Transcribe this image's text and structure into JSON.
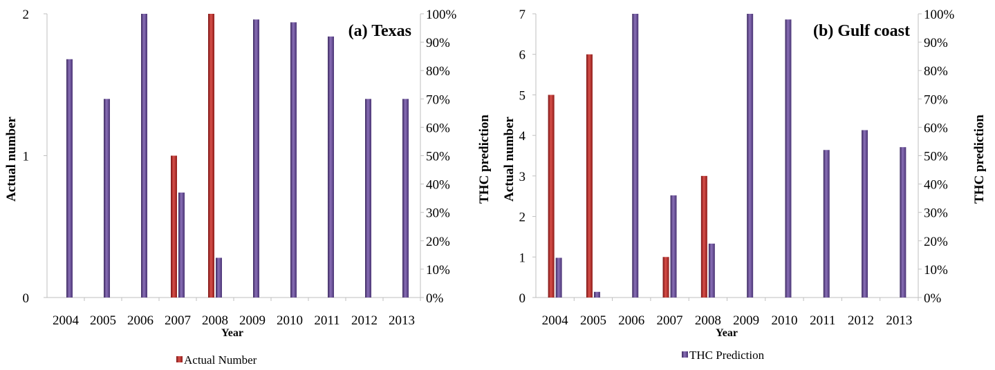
{
  "colors": {
    "actual": "#c0302c",
    "actual_dark": "#7a1414",
    "thc": "#6a4f95",
    "thc_dark": "#3d2a60",
    "axis": "#bfbfbf"
  },
  "legend": {
    "actual_label": "Actual Number",
    "thc_label": "THC Prediction"
  },
  "chart_data": [
    {
      "type": "bar",
      "title": "(a) Texas",
      "xlabel": "Year",
      "ylabel": "Actual number",
      "y2label": "THC prediction",
      "categories": [
        "2004",
        "2005",
        "2006",
        "2007",
        "2008",
        "2009",
        "2010",
        "2011",
        "2012",
        "2013"
      ],
      "ylim": [
        0,
        2
      ],
      "y2lim": [
        0,
        100
      ],
      "yticks": [
        "0",
        "1",
        "2"
      ],
      "y2ticks": [
        "0%",
        "10%",
        "20%",
        "30%",
        "40%",
        "50%",
        "60%",
        "70%",
        "80%",
        "90%",
        "100%"
      ],
      "series": [
        {
          "name": "Actual Number",
          "axis": "left",
          "values": [
            0,
            0,
            0,
            1,
            2,
            0,
            0,
            0,
            0,
            0
          ]
        },
        {
          "name": "THC Prediction",
          "axis": "right",
          "values": [
            84,
            70,
            100,
            37,
            14,
            98,
            97,
            92,
            70,
            70
          ]
        }
      ]
    },
    {
      "type": "bar",
      "title": "(b) Gulf coast",
      "xlabel": "Year",
      "ylabel": "Actual number",
      "y2label": "THC prediction",
      "categories": [
        "2004",
        "2005",
        "2006",
        "2007",
        "2008",
        "2009",
        "2010",
        "2011",
        "2012",
        "2013"
      ],
      "ylim": [
        0,
        7
      ],
      "y2lim": [
        0,
        100
      ],
      "yticks": [
        "0",
        "1",
        "2",
        "3",
        "4",
        "5",
        "6",
        "7"
      ],
      "y2ticks": [
        "0%",
        "10%",
        "20%",
        "30%",
        "40%",
        "50%",
        "60%",
        "70%",
        "80%",
        "90%",
        "100%"
      ],
      "series": [
        {
          "name": "Actual Number",
          "axis": "left",
          "values": [
            5,
            6,
            0,
            1,
            3,
            0,
            0,
            0,
            0,
            0
          ]
        },
        {
          "name": "THC Prediction",
          "axis": "right",
          "values": [
            14,
            2,
            100,
            36,
            19,
            100,
            98,
            52,
            59,
            53
          ]
        }
      ]
    }
  ]
}
